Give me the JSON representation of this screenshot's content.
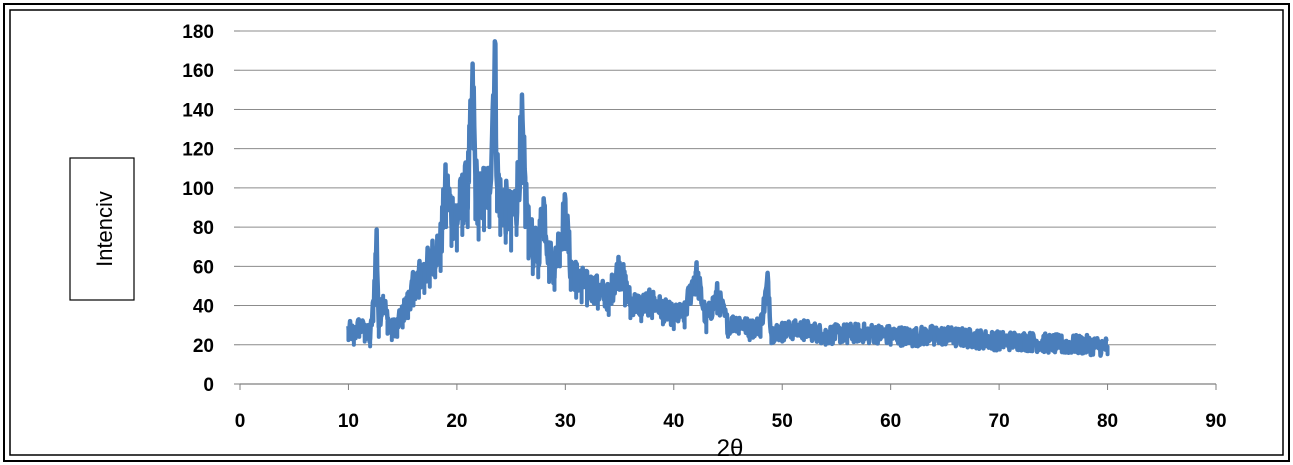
{
  "chart_data": {
    "type": "line",
    "title": "",
    "xlabel": "2θ",
    "ylabel": "Intenciv",
    "xlim": [
      0,
      90
    ],
    "ylim": [
      0,
      180
    ],
    "xticks": [
      0,
      10,
      20,
      30,
      40,
      50,
      60,
      70,
      80,
      90
    ],
    "yticks": [
      0,
      20,
      40,
      60,
      80,
      100,
      120,
      140,
      160,
      180
    ],
    "grid": "horizontal",
    "legend": "none",
    "series_color": "#4a7ebb",
    "series": [
      {
        "x": [
          10,
          10.5,
          11,
          11.5,
          12,
          12.3,
          12.6,
          12.8,
          13.2,
          13.6,
          14,
          14.5,
          15,
          15.5,
          16,
          16.5,
          17,
          17.5,
          18,
          18.5,
          19,
          19.5,
          20,
          20.5,
          21,
          21.5,
          21.7,
          22,
          22.5,
          23,
          23.5,
          23.7,
          24,
          24.5,
          25,
          25.5,
          26,
          26.3,
          26.6,
          27,
          27.5,
          28,
          28.5,
          29,
          29.5,
          30,
          30.5,
          31,
          31.5,
          32,
          33,
          34,
          35,
          35.5,
          36,
          37,
          38,
          39,
          40,
          41,
          42,
          43,
          44,
          45,
          46,
          47,
          48,
          48.7,
          49,
          50,
          52,
          54,
          56,
          58,
          60,
          62,
          64,
          66,
          68,
          70,
          72,
          74,
          76,
          78,
          80
        ],
        "y": [
          28,
          25,
          30,
          27,
          24,
          40,
          74,
          30,
          45,
          32,
          28,
          30,
          36,
          42,
          50,
          55,
          58,
          62,
          68,
          72,
          100,
          88,
          85,
          95,
          100,
          150,
          105,
          92,
          98,
          100,
          168,
          110,
          95,
          90,
          85,
          95,
          128,
          100,
          80,
          70,
          68,
          92,
          65,
          60,
          75,
          86,
          60,
          55,
          52,
          50,
          48,
          44,
          60,
          50,
          42,
          40,
          42,
          38,
          35,
          36,
          57,
          33,
          45,
          30,
          32,
          28,
          30,
          52,
          26,
          27,
          28,
          25,
          26,
          26,
          25,
          24,
          25,
          24,
          23,
          22,
          22,
          21,
          20,
          20,
          19
        ]
      }
    ]
  }
}
